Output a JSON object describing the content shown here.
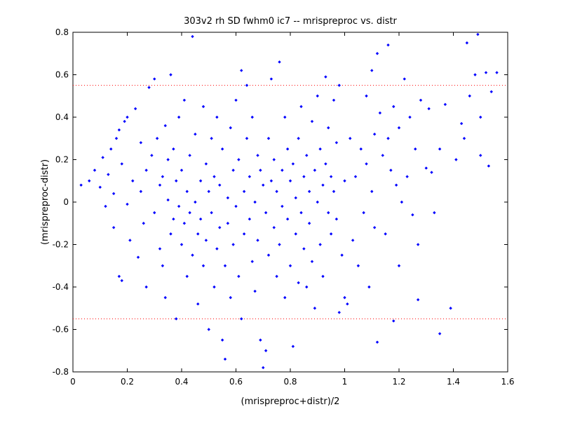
{
  "chart_data": {
    "type": "scatter",
    "title": "303v2 rh SD fwhm0 ic7 -- mrispreproc vs. distr",
    "xlabel": "(mrispreproc+distr)/2",
    "ylabel": "(mrispreproc-distr)",
    "xlim": [
      0,
      1.6
    ],
    "ylim": [
      -0.8,
      0.8
    ],
    "xticks": [
      0,
      0.2,
      0.4,
      0.6,
      0.8,
      1,
      1.2,
      1.4,
      1.6
    ],
    "xtick_labels": [
      "0",
      "0.2",
      "0.4",
      "0.6",
      "0.8",
      "1",
      "1.2",
      "1.4",
      "1.6"
    ],
    "yticks": [
      -0.8,
      -0.6,
      -0.4,
      -0.2,
      0,
      0.2,
      0.4,
      0.6,
      0.8
    ],
    "ytick_labels": [
      "-0.8",
      "-0.6",
      "-0.4",
      "-0.2",
      "0",
      "0.2",
      "0.4",
      "0.6",
      "0.8"
    ],
    "grid": false,
    "marker_color": "#0000ff",
    "reference_line_color": "#ff0000",
    "reference_lines_y": [
      0.55,
      -0.55
    ],
    "points": [
      {
        "x": 0.03,
        "y": 0.08
      },
      {
        "x": 0.06,
        "y": 0.1
      },
      {
        "x": 0.08,
        "y": 0.15
      },
      {
        "x": 0.1,
        "y": 0.07
      },
      {
        "x": 0.11,
        "y": 0.21
      },
      {
        "x": 0.12,
        "y": -0.02
      },
      {
        "x": 0.13,
        "y": 0.13
      },
      {
        "x": 0.14,
        "y": 0.25
      },
      {
        "x": 0.15,
        "y": 0.04
      },
      {
        "x": 0.15,
        "y": -0.12
      },
      {
        "x": 0.16,
        "y": 0.3
      },
      {
        "x": 0.17,
        "y": 0.34
      },
      {
        "x": 0.17,
        "y": -0.35
      },
      {
        "x": 0.18,
        "y": -0.37
      },
      {
        "x": 0.18,
        "y": 0.18
      },
      {
        "x": 0.19,
        "y": 0.38
      },
      {
        "x": 0.2,
        "y": -0.01
      },
      {
        "x": 0.2,
        "y": 0.4
      },
      {
        "x": 0.21,
        "y": -0.18
      },
      {
        "x": 0.22,
        "y": 0.1
      },
      {
        "x": 0.23,
        "y": 0.44
      },
      {
        "x": 0.24,
        "y": -0.26
      },
      {
        "x": 0.25,
        "y": 0.28
      },
      {
        "x": 0.25,
        "y": 0.05
      },
      {
        "x": 0.26,
        "y": -0.1
      },
      {
        "x": 0.27,
        "y": 0.15
      },
      {
        "x": 0.27,
        "y": -0.4
      },
      {
        "x": 0.28,
        "y": 0.54
      },
      {
        "x": 0.29,
        "y": 0.22
      },
      {
        "x": 0.3,
        "y": 0.58
      },
      {
        "x": 0.3,
        "y": -0.05
      },
      {
        "x": 0.31,
        "y": 0.3
      },
      {
        "x": 0.32,
        "y": -0.22
      },
      {
        "x": 0.32,
        "y": 0.08
      },
      {
        "x": 0.33,
        "y": 0.12
      },
      {
        "x": 0.33,
        "y": -0.3
      },
      {
        "x": 0.34,
        "y": 0.36
      },
      {
        "x": 0.34,
        "y": -0.45
      },
      {
        "x": 0.35,
        "y": 0.01
      },
      {
        "x": 0.35,
        "y": 0.2
      },
      {
        "x": 0.36,
        "y": 0.6
      },
      {
        "x": 0.36,
        "y": -0.15
      },
      {
        "x": 0.37,
        "y": -0.08
      },
      {
        "x": 0.37,
        "y": 0.25
      },
      {
        "x": 0.38,
        "y": -0.55
      },
      {
        "x": 0.38,
        "y": 0.1
      },
      {
        "x": 0.39,
        "y": -0.02
      },
      {
        "x": 0.39,
        "y": 0.4
      },
      {
        "x": 0.4,
        "y": -0.2
      },
      {
        "x": 0.4,
        "y": 0.15
      },
      {
        "x": 0.41,
        "y": -0.1
      },
      {
        "x": 0.41,
        "y": 0.48
      },
      {
        "x": 0.42,
        "y": 0.05
      },
      {
        "x": 0.42,
        "y": -0.35
      },
      {
        "x": 0.43,
        "y": -0.05
      },
      {
        "x": 0.43,
        "y": 0.22
      },
      {
        "x": 0.44,
        "y": 0.78
      },
      {
        "x": 0.44,
        "y": -0.25
      },
      {
        "x": 0.45,
        "y": 0.0
      },
      {
        "x": 0.45,
        "y": 0.32
      },
      {
        "x": 0.46,
        "y": -0.15
      },
      {
        "x": 0.46,
        "y": -0.48
      },
      {
        "x": 0.47,
        "y": 0.1
      },
      {
        "x": 0.47,
        "y": -0.08
      },
      {
        "x": 0.48,
        "y": 0.45
      },
      {
        "x": 0.48,
        "y": -0.3
      },
      {
        "x": 0.49,
        "y": -0.18
      },
      {
        "x": 0.49,
        "y": 0.18
      },
      {
        "x": 0.5,
        "y": -0.6
      },
      {
        "x": 0.5,
        "y": 0.05
      },
      {
        "x": 0.51,
        "y": -0.05
      },
      {
        "x": 0.51,
        "y": 0.3
      },
      {
        "x": 0.52,
        "y": -0.4
      },
      {
        "x": 0.52,
        "y": 0.12
      },
      {
        "x": 0.53,
        "y": -0.22
      },
      {
        "x": 0.53,
        "y": 0.4
      },
      {
        "x": 0.54,
        "y": -0.12
      },
      {
        "x": 0.54,
        "y": 0.08
      },
      {
        "x": 0.55,
        "y": -0.65
      },
      {
        "x": 0.55,
        "y": 0.25
      },
      {
        "x": 0.56,
        "y": -0.74
      },
      {
        "x": 0.56,
        "y": -0.3
      },
      {
        "x": 0.57,
        "y": 0.02
      },
      {
        "x": 0.57,
        "y": -0.1
      },
      {
        "x": 0.58,
        "y": 0.35
      },
      {
        "x": 0.58,
        "y": -0.45
      },
      {
        "x": 0.59,
        "y": 0.15
      },
      {
        "x": 0.59,
        "y": -0.2
      },
      {
        "x": 0.6,
        "y": 0.48
      },
      {
        "x": 0.6,
        "y": -0.02
      },
      {
        "x": 0.61,
        "y": -0.35
      },
      {
        "x": 0.61,
        "y": 0.2
      },
      {
        "x": 0.62,
        "y": 0.62
      },
      {
        "x": 0.62,
        "y": -0.55
      },
      {
        "x": 0.63,
        "y": 0.05
      },
      {
        "x": 0.63,
        "y": -0.15
      },
      {
        "x": 0.64,
        "y": 0.3
      },
      {
        "x": 0.64,
        "y": 0.55
      },
      {
        "x": 0.65,
        "y": -0.08
      },
      {
        "x": 0.65,
        "y": 0.12
      },
      {
        "x": 0.66,
        "y": -0.28
      },
      {
        "x": 0.66,
        "y": 0.4
      },
      {
        "x": 0.67,
        "y": -0.42
      },
      {
        "x": 0.67,
        "y": 0.0
      },
      {
        "x": 0.68,
        "y": 0.22
      },
      {
        "x": 0.68,
        "y": -0.18
      },
      {
        "x": 0.69,
        "y": -0.65
      },
      {
        "x": 0.69,
        "y": 0.15
      },
      {
        "x": 0.7,
        "y": -0.78
      },
      {
        "x": 0.7,
        "y": 0.08
      },
      {
        "x": 0.71,
        "y": -0.7
      },
      {
        "x": 0.71,
        "y": -0.05
      },
      {
        "x": 0.72,
        "y": 0.3
      },
      {
        "x": 0.72,
        "y": -0.25
      },
      {
        "x": 0.73,
        "y": 0.58
      },
      {
        "x": 0.73,
        "y": 0.1
      },
      {
        "x": 0.74,
        "y": -0.12
      },
      {
        "x": 0.74,
        "y": 0.2
      },
      {
        "x": 0.75,
        "y": -0.35
      },
      {
        "x": 0.75,
        "y": 0.05
      },
      {
        "x": 0.76,
        "y": 0.66
      },
      {
        "x": 0.76,
        "y": -0.2
      },
      {
        "x": 0.77,
        "y": 0.15
      },
      {
        "x": 0.77,
        "y": -0.02
      },
      {
        "x": 0.78,
        "y": 0.4
      },
      {
        "x": 0.78,
        "y": -0.45
      },
      {
        "x": 0.79,
        "y": 0.25
      },
      {
        "x": 0.79,
        "y": -0.08
      },
      {
        "x": 0.8,
        "y": 0.1
      },
      {
        "x": 0.8,
        "y": -0.3
      },
      {
        "x": 0.81,
        "y": -0.68
      },
      {
        "x": 0.81,
        "y": 0.18
      },
      {
        "x": 0.82,
        "y": 0.02
      },
      {
        "x": 0.82,
        "y": -0.15
      },
      {
        "x": 0.83,
        "y": 0.3
      },
      {
        "x": 0.83,
        "y": -0.38
      },
      {
        "x": 0.84,
        "y": 0.45
      },
      {
        "x": 0.84,
        "y": -0.05
      },
      {
        "x": 0.85,
        "y": 0.12
      },
      {
        "x": 0.85,
        "y": -0.22
      },
      {
        "x": 0.86,
        "y": 0.22
      },
      {
        "x": 0.86,
        "y": -0.4
      },
      {
        "x": 0.87,
        "y": 0.05
      },
      {
        "x": 0.87,
        "y": -0.1
      },
      {
        "x": 0.88,
        "y": 0.38
      },
      {
        "x": 0.88,
        "y": -0.28
      },
      {
        "x": 0.89,
        "y": 0.15
      },
      {
        "x": 0.89,
        "y": -0.5
      },
      {
        "x": 0.9,
        "y": 0.5
      },
      {
        "x": 0.9,
        "y": 0.0
      },
      {
        "x": 0.91,
        "y": -0.2
      },
      {
        "x": 0.91,
        "y": 0.25
      },
      {
        "x": 0.92,
        "y": 0.08
      },
      {
        "x": 0.92,
        "y": -0.35
      },
      {
        "x": 0.93,
        "y": 0.59
      },
      {
        "x": 0.93,
        "y": 0.18
      },
      {
        "x": 0.94,
        "y": -0.05
      },
      {
        "x": 0.94,
        "y": 0.35
      },
      {
        "x": 0.95,
        "y": 0.12
      },
      {
        "x": 0.95,
        "y": -0.15
      },
      {
        "x": 0.96,
        "y": 0.48
      },
      {
        "x": 0.96,
        "y": 0.05
      },
      {
        "x": 0.97,
        "y": 0.28
      },
      {
        "x": 0.97,
        "y": -0.08
      },
      {
        "x": 0.98,
        "y": -0.52
      },
      {
        "x": 0.98,
        "y": 0.55
      },
      {
        "x": 0.99,
        "y": -0.25
      },
      {
        "x": 1.0,
        "y": -0.45
      },
      {
        "x": 1.0,
        "y": 0.1
      },
      {
        "x": 1.01,
        "y": -0.48
      },
      {
        "x": 1.02,
        "y": 0.3
      },
      {
        "x": 1.03,
        "y": -0.18
      },
      {
        "x": 1.04,
        "y": 0.12
      },
      {
        "x": 1.05,
        "y": -0.3
      },
      {
        "x": 1.06,
        "y": 0.25
      },
      {
        "x": 1.07,
        "y": -0.05
      },
      {
        "x": 1.08,
        "y": 0.5
      },
      {
        "x": 1.08,
        "y": 0.18
      },
      {
        "x": 1.09,
        "y": -0.4
      },
      {
        "x": 1.1,
        "y": 0.05
      },
      {
        "x": 1.1,
        "y": 0.62
      },
      {
        "x": 1.11,
        "y": -0.12
      },
      {
        "x": 1.11,
        "y": 0.32
      },
      {
        "x": 1.12,
        "y": 0.7
      },
      {
        "x": 1.12,
        "y": -0.66
      },
      {
        "x": 1.13,
        "y": 0.42
      },
      {
        "x": 1.14,
        "y": 0.22
      },
      {
        "x": 1.15,
        "y": -0.15
      },
      {
        "x": 1.16,
        "y": 0.74
      },
      {
        "x": 1.16,
        "y": 0.3
      },
      {
        "x": 1.17,
        "y": 0.15
      },
      {
        "x": 1.18,
        "y": -0.56
      },
      {
        "x": 1.18,
        "y": 0.45
      },
      {
        "x": 1.19,
        "y": 0.08
      },
      {
        "x": 1.2,
        "y": -0.3
      },
      {
        "x": 1.2,
        "y": 0.35
      },
      {
        "x": 1.21,
        "y": 0.0
      },
      {
        "x": 1.22,
        "y": 0.58
      },
      {
        "x": 1.23,
        "y": 0.12
      },
      {
        "x": 1.24,
        "y": 0.4
      },
      {
        "x": 1.25,
        "y": -0.06
      },
      {
        "x": 1.26,
        "y": 0.25
      },
      {
        "x": 1.27,
        "y": -0.2
      },
      {
        "x": 1.27,
        "y": -0.46
      },
      {
        "x": 1.28,
        "y": 0.48
      },
      {
        "x": 1.3,
        "y": 0.16
      },
      {
        "x": 1.31,
        "y": 0.44
      },
      {
        "x": 1.32,
        "y": 0.14
      },
      {
        "x": 1.33,
        "y": -0.05
      },
      {
        "x": 1.35,
        "y": 0.25
      },
      {
        "x": 1.35,
        "y": -0.62
      },
      {
        "x": 1.37,
        "y": 0.46
      },
      {
        "x": 1.39,
        "y": -0.5
      },
      {
        "x": 1.41,
        "y": 0.2
      },
      {
        "x": 1.43,
        "y": 0.37
      },
      {
        "x": 1.44,
        "y": 0.3
      },
      {
        "x": 1.45,
        "y": 0.75
      },
      {
        "x": 1.46,
        "y": 0.5
      },
      {
        "x": 1.48,
        "y": 0.6
      },
      {
        "x": 1.49,
        "y": 0.79
      },
      {
        "x": 1.5,
        "y": 0.4
      },
      {
        "x": 1.5,
        "y": 0.22
      },
      {
        "x": 1.52,
        "y": 0.61
      },
      {
        "x": 1.53,
        "y": 0.17
      },
      {
        "x": 1.54,
        "y": 0.52
      },
      {
        "x": 1.56,
        "y": 0.61
      }
    ]
  }
}
